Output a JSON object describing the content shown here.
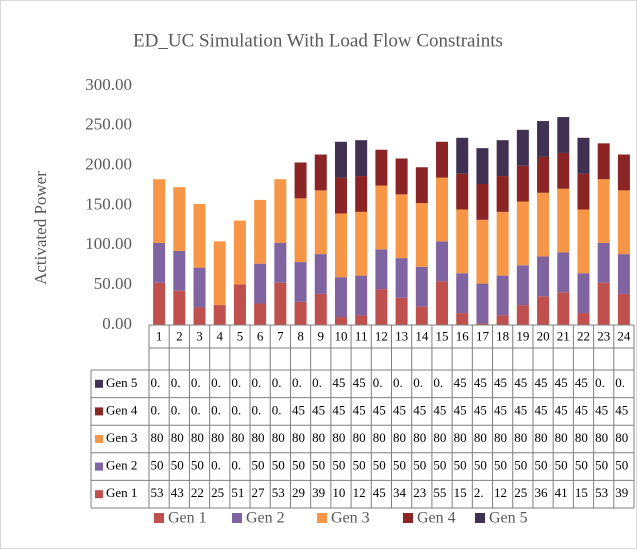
{
  "chart_data": {
    "type": "bar",
    "stacked": true,
    "title": "ED_UC Simulation With Load Flow Constraints",
    "y_label": "Activated Power",
    "categories": [
      "1",
      "2",
      "3",
      "4",
      "5",
      "6",
      "7",
      "8",
      "9",
      "10",
      "11",
      "12",
      "13",
      "14",
      "15",
      "16",
      "17",
      "18",
      "19",
      "20",
      "21",
      "22",
      "23",
      "24"
    ],
    "series": [
      {
        "name": "Gen 1",
        "color": "#c0504d",
        "values": [
          53,
          43,
          22,
          25,
          51,
          27,
          53,
          29,
          39,
          10,
          12,
          45,
          34,
          23,
          55,
          15,
          2,
          12,
          25,
          36,
          41,
          15,
          53,
          39
        ],
        "value_labels": [
          "53",
          "43",
          "22",
          "25",
          "51",
          "27",
          "53",
          "29",
          "39",
          "10",
          "12",
          "45",
          "34",
          "23",
          "55",
          "15",
          "2.",
          "12",
          "25",
          "36",
          "41",
          "15",
          "53",
          "39"
        ]
      },
      {
        "name": "Gen 2",
        "color": "#8064a2",
        "values": [
          50,
          50,
          50,
          0,
          0,
          50,
          50,
          50,
          50,
          50,
          50,
          50,
          50,
          50,
          50,
          50,
          50,
          50,
          50,
          50,
          50,
          50,
          50,
          50
        ],
        "value_labels": [
          "50",
          "50",
          "50",
          "0.",
          "0.",
          "50",
          "50",
          "50",
          "50",
          "50",
          "50",
          "50",
          "50",
          "50",
          "50",
          "50",
          "50",
          "50",
          "50",
          "50",
          "50",
          "50",
          "50",
          "50"
        ]
      },
      {
        "name": "Gen 3",
        "color": "#f79646",
        "values": [
          80,
          80,
          80,
          80,
          80,
          80,
          80,
          80,
          80,
          80,
          80,
          80,
          80,
          80,
          80,
          80,
          80,
          80,
          80,
          80,
          80,
          80,
          80,
          80
        ],
        "value_labels": [
          "80",
          "80",
          "80",
          "80",
          "80",
          "80",
          "80",
          "80",
          "80",
          "80",
          "80",
          "80",
          "80",
          "80",
          "80",
          "80",
          "80",
          "80",
          "80",
          "80",
          "80",
          "80",
          "80",
          "80"
        ]
      },
      {
        "name": "Gen 4",
        "color": "#8b2525",
        "values": [
          0,
          0,
          0,
          0,
          0,
          0,
          0,
          45,
          45,
          45,
          45,
          45,
          45,
          45,
          45,
          45,
          45,
          45,
          45,
          45,
          45,
          45,
          45,
          45
        ],
        "value_labels": [
          "0.",
          "0.",
          "0.",
          "0.",
          "0.",
          "0.",
          "0.",
          "45",
          "45",
          "45",
          "45",
          "45",
          "45",
          "45",
          "45",
          "45",
          "45",
          "45",
          "45",
          "45",
          "45",
          "45",
          "45",
          "45"
        ]
      },
      {
        "name": "Gen 5",
        "color": "#403152",
        "values": [
          0,
          0,
          0,
          0,
          0,
          0,
          0,
          0,
          0,
          45,
          45,
          0,
          0,
          0,
          0,
          45,
          45,
          45,
          45,
          45,
          45,
          45,
          0,
          0
        ],
        "value_labels": [
          "0.",
          "0.",
          "0.",
          "0.",
          "0.",
          "0.",
          "0.",
          "0.",
          "0.",
          "45",
          "45",
          "0.",
          "0.",
          "0.",
          "0.",
          "45",
          "45",
          "45",
          "45",
          "45",
          "45",
          "45",
          "0.",
          "0."
        ]
      }
    ],
    "ylim": [
      0,
      300
    ],
    "yticks": [
      {
        "value": 0,
        "label": "0.00"
      },
      {
        "value": 50,
        "label": "50.00"
      },
      {
        "value": 100,
        "label": "100.00"
      },
      {
        "value": 150,
        "label": "150.00"
      },
      {
        "value": 200,
        "label": "200.00"
      },
      {
        "value": 250,
        "label": "250.00"
      },
      {
        "value": 300,
        "label": "300.00"
      }
    ],
    "data_table": true
  }
}
